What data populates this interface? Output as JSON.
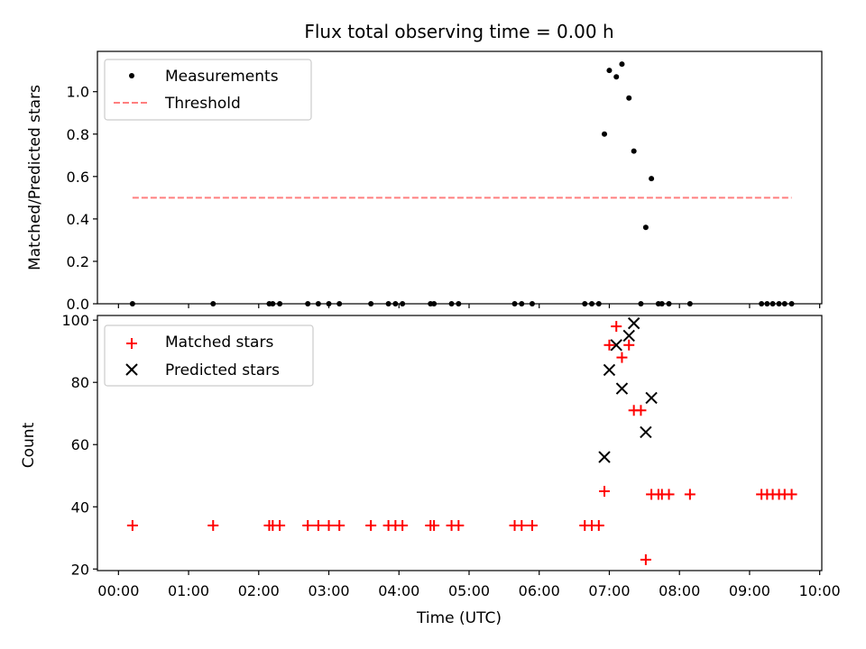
{
  "chart_data": [
    {
      "type": "scatter",
      "title": "Flux total observing time = 0.00 h",
      "ylabel": "Matched/Predicted stars",
      "xlabel": "",
      "xlim": [
        -0.3,
        10.03
      ],
      "ylim": [
        0,
        1.19
      ],
      "yticks": [
        0.0,
        0.2,
        0.4,
        0.6,
        0.8,
        1.0
      ],
      "ytick_labels": [
        "0.0",
        "0.2",
        "0.4",
        "0.6",
        "0.8",
        "1.0"
      ],
      "grid": false,
      "legend": "upper-left",
      "series": [
        {
          "name": "Measurements",
          "marker": "dot",
          "color": "#000000",
          "x": [
            0.2,
            1.35,
            2.15,
            2.2,
            2.3,
            2.7,
            2.85,
            3.0,
            3.15,
            3.6,
            3.85,
            3.95,
            4.05,
            4.45,
            4.5,
            4.75,
            4.85,
            5.65,
            5.75,
            5.9,
            6.65,
            6.75,
            6.85,
            6.93,
            7.0,
            7.1,
            7.18,
            7.28,
            7.35,
            7.45,
            7.52,
            7.6,
            7.7,
            7.75,
            7.85,
            8.15,
            9.17,
            9.25,
            9.33,
            9.42,
            9.5,
            9.6
          ],
          "y": [
            0,
            0,
            0,
            0,
            0,
            0,
            0,
            0,
            0,
            0,
            0,
            0,
            0,
            0,
            0,
            0,
            0,
            0,
            0,
            0,
            0,
            0,
            0,
            0.8,
            1.1,
            1.07,
            1.13,
            0.97,
            0.72,
            0,
            0.36,
            0.59,
            0,
            0,
            0,
            0,
            0,
            0,
            0,
            0,
            0,
            0
          ]
        },
        {
          "name": "Threshold",
          "style": "dashed",
          "color": "#ff7f7f",
          "x": [
            0.2,
            9.6
          ],
          "y": [
            0.5,
            0.5
          ]
        }
      ]
    },
    {
      "type": "scatter",
      "title": "",
      "ylabel": "Count",
      "xlabel": "Time (UTC)",
      "xlim": [
        -0.3,
        10.03
      ],
      "ylim": [
        19.5,
        101.5
      ],
      "yticks": [
        20,
        40,
        60,
        80,
        100
      ],
      "ytick_labels": [
        "20",
        "40",
        "60",
        "80",
        "100"
      ],
      "xticks": [
        0,
        1,
        2,
        3,
        4,
        5,
        6,
        7,
        8,
        9,
        10
      ],
      "xtick_labels": [
        "00:00",
        "01:00",
        "02:00",
        "03:00",
        "04:00",
        "05:00",
        "06:00",
        "07:00",
        "08:00",
        "09:00",
        "10:00"
      ],
      "grid": false,
      "legend": "upper-left",
      "series": [
        {
          "name": "Matched stars",
          "marker": "plus",
          "color": "#ff0000",
          "x": [
            0.2,
            1.35,
            2.15,
            2.2,
            2.3,
            2.7,
            2.85,
            3.0,
            3.15,
            3.6,
            3.85,
            3.95,
            4.05,
            4.45,
            4.5,
            4.75,
            4.85,
            5.65,
            5.75,
            5.9,
            6.65,
            6.75,
            6.85,
            6.93,
            7.0,
            7.1,
            7.18,
            7.28,
            7.35,
            7.45,
            7.52,
            7.6,
            7.7,
            7.75,
            7.85,
            8.15,
            9.17,
            9.25,
            9.33,
            9.42,
            9.5,
            9.6
          ],
          "y": [
            34,
            34,
            34,
            34,
            34,
            34,
            34,
            34,
            34,
            34,
            34,
            34,
            34,
            34,
            34,
            34,
            34,
            34,
            34,
            34,
            34,
            34,
            34,
            45,
            92,
            98,
            88,
            92,
            71,
            71,
            23,
            44,
            44,
            44,
            44,
            44,
            44,
            44,
            44,
            44,
            44,
            44
          ]
        },
        {
          "name": "Predicted stars",
          "marker": "x",
          "color": "#000000",
          "x": [
            6.93,
            7.0,
            7.1,
            7.18,
            7.28,
            7.35,
            7.52,
            7.6
          ],
          "y": [
            56,
            84,
            92,
            78,
            95,
            99,
            64,
            75
          ]
        }
      ]
    }
  ]
}
